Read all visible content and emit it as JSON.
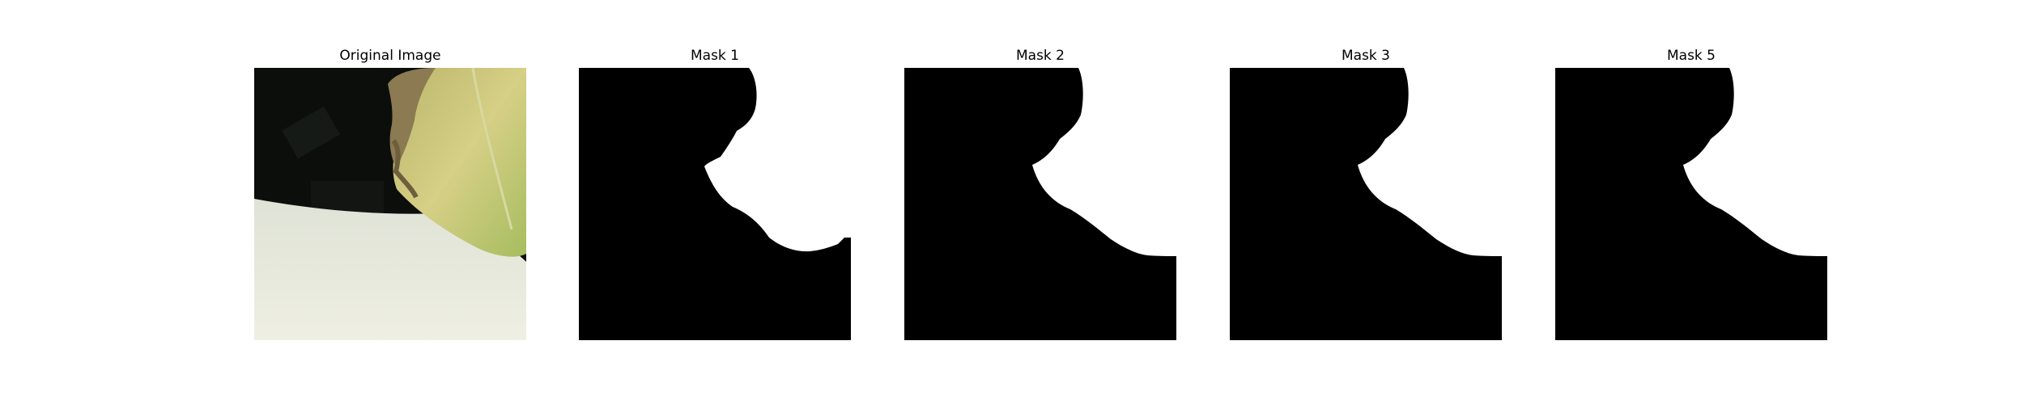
{
  "figure": {
    "panels": [
      {
        "title": "Original Image",
        "kind": "photo"
      },
      {
        "title": "Mask 1",
        "kind": "mask",
        "variant": "a"
      },
      {
        "title": "Mask 2",
        "kind": "mask",
        "variant": "b"
      },
      {
        "title": "Mask 3",
        "kind": "mask",
        "variant": "b"
      },
      {
        "title": "Mask 5",
        "kind": "mask",
        "variant": "b"
      }
    ],
    "colors": {
      "mask_foreground": "#ffffff",
      "mask_background": "#000000",
      "leaf_yellow": "#c9c277",
      "leaf_green": "#a9bf6a",
      "dark_background": "#0c0f0c",
      "sheet_white": "#e8eadf"
    }
  }
}
